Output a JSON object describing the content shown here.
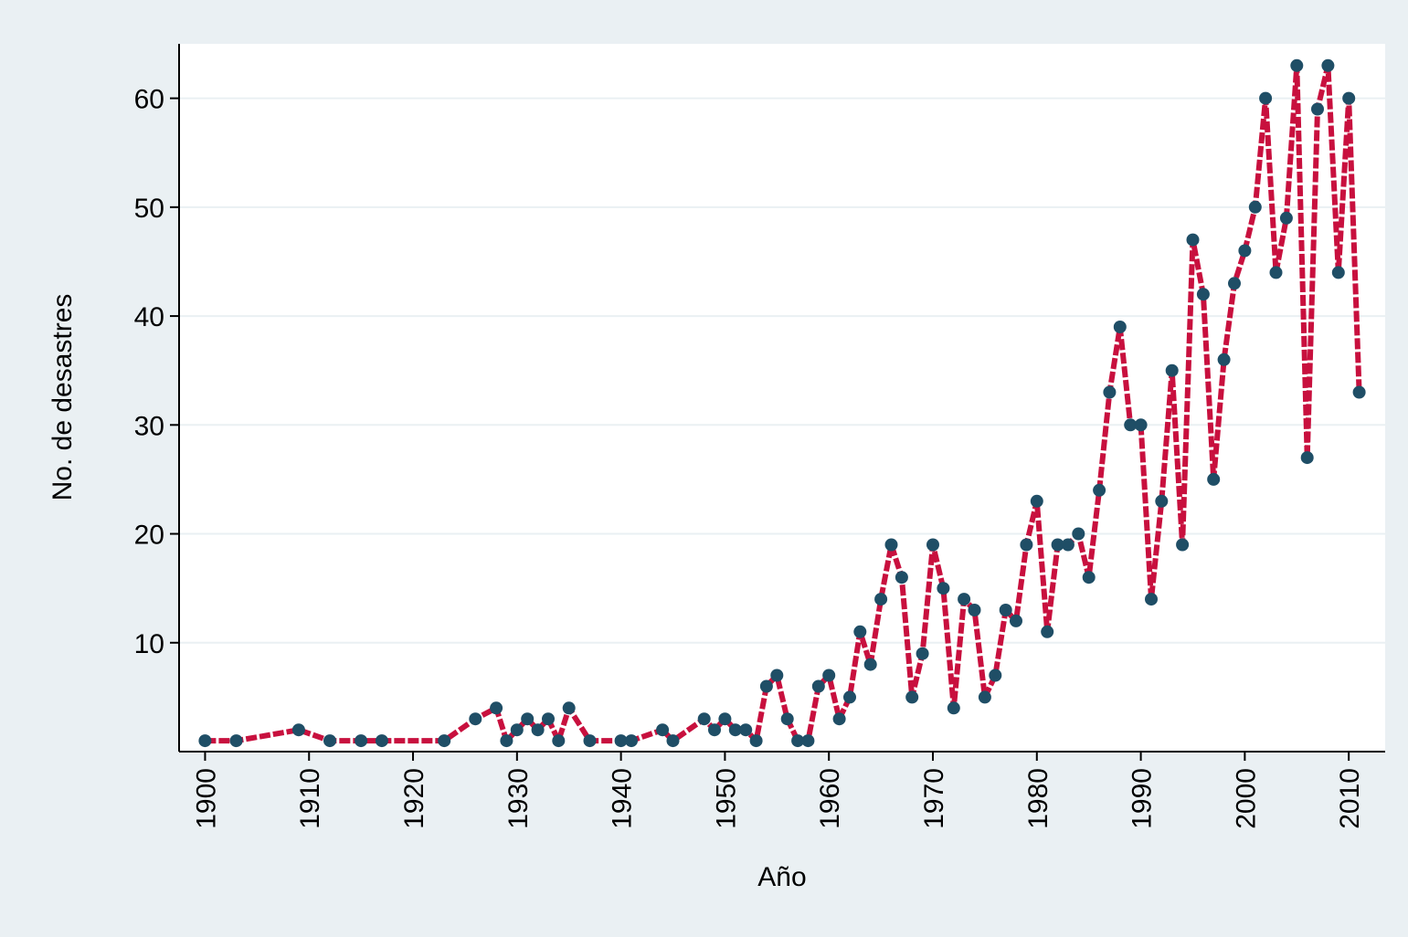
{
  "chart_data": {
    "type": "line",
    "xlabel": "Año",
    "ylabel": "No. de desastres",
    "xlim": [
      1897.5,
      2013.5
    ],
    "ylim": [
      0,
      65
    ],
    "xticks": [
      1900,
      1910,
      1920,
      1930,
      1940,
      1950,
      1960,
      1970,
      1980,
      1990,
      2000,
      2010
    ],
    "yticks": [
      10,
      20,
      30,
      40,
      50,
      60
    ],
    "grid": "horizontal",
    "series": [
      {
        "x": [
          1900,
          1903,
          1909,
          1912,
          1915,
          1917,
          1923,
          1926,
          1928,
          1929,
          1930,
          1931,
          1932,
          1933,
          1934,
          1935,
          1937,
          1940,
          1941,
          1944,
          1945,
          1948,
          1949,
          1950,
          1951,
          1952,
          1953,
          1954,
          1955,
          1956,
          1957,
          1958,
          1959,
          1960,
          1961,
          1962,
          1963,
          1964,
          1965,
          1966,
          1967,
          1968,
          1969,
          1970,
          1971,
          1972,
          1973,
          1974,
          1975,
          1976,
          1977,
          1978,
          1979,
          1980,
          1981,
          1982,
          1983,
          1984,
          1985,
          1986,
          1987,
          1988,
          1989,
          1990,
          1991,
          1992,
          1993,
          1994,
          1995,
          1996,
          1997,
          1998,
          1999,
          2000,
          2001,
          2002,
          2003,
          2004,
          2005,
          2006,
          2007,
          2008,
          2009,
          2010,
          2011
        ],
        "values": [
          1,
          1,
          2,
          1,
          1,
          1,
          1,
          3,
          4,
          1,
          2,
          3,
          2,
          3,
          1,
          4,
          1,
          1,
          1,
          2,
          1,
          3,
          2,
          3,
          2,
          2,
          1,
          6,
          7,
          3,
          1,
          1,
          6,
          7,
          3,
          5,
          11,
          8,
          14,
          19,
          16,
          5,
          9,
          19,
          15,
          4,
          14,
          13,
          5,
          7,
          13,
          12,
          19,
          23,
          11,
          19,
          19,
          20,
          16,
          24,
          33,
          39,
          30,
          30,
          14,
          23,
          35,
          19,
          47,
          42,
          25,
          36,
          43,
          46,
          50,
          60,
          44,
          49,
          63,
          27,
          59,
          63,
          44,
          60,
          33
        ]
      }
    ],
    "colors": {
      "line": "#c8103e",
      "marker": "#1f4e66",
      "outer_bg": "#eaf0f3",
      "plot_bg": "#ffffff",
      "grid": "#eaf0f3"
    }
  }
}
